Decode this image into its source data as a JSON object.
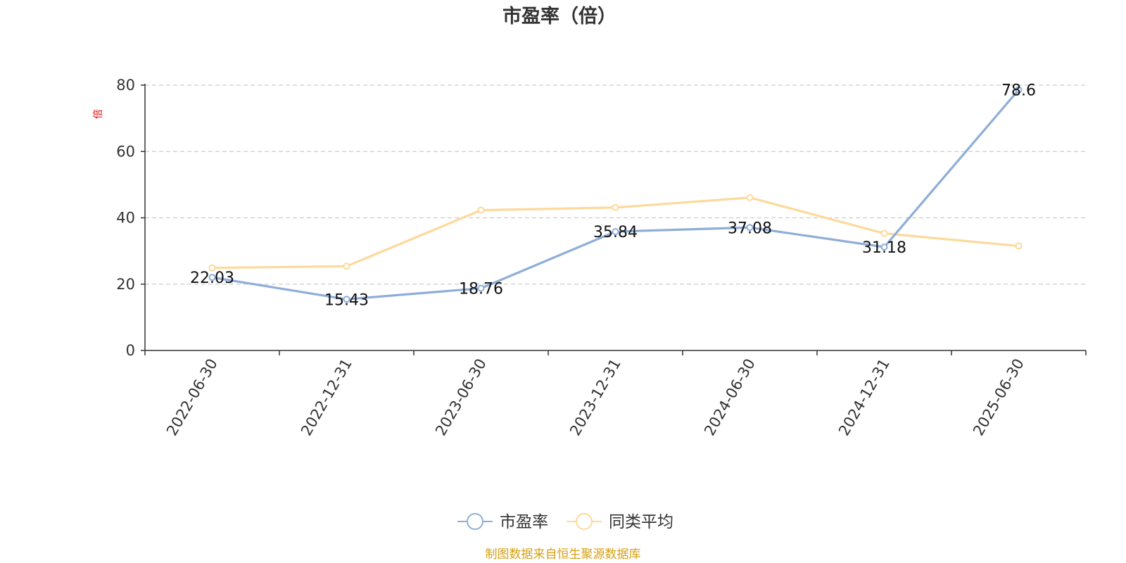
{
  "chart_data": {
    "type": "line",
    "title": "市盈率（倍）",
    "ylabel": "倍",
    "ylim": [
      0,
      80
    ],
    "yticks": [
      "0",
      "20",
      "40",
      "60",
      "80"
    ],
    "grid": true,
    "legend_position": "bottom",
    "categories": [
      "2022-06-30",
      "2022-12-31",
      "2023-06-30",
      "2023-12-31",
      "2024-06-30",
      "2024-12-31",
      "2025-06-30"
    ],
    "series": [
      {
        "name": "市盈率",
        "color": "#8eaed8",
        "values": [
          22.03,
          15.43,
          18.76,
          35.84,
          37.08,
          31.18,
          78.6
        ],
        "labels": [
          "22.03",
          "15.43",
          "18.76",
          "35.84",
          "37.08",
          "31.18",
          "78.6"
        ]
      },
      {
        "name": "同类平均",
        "color": "#fdd99b",
        "values": [
          24.9,
          25.4,
          42.3,
          43.1,
          46.1,
          35.3,
          31.5
        ]
      }
    ],
    "source": "制图数据来自恒生聚源数据库"
  }
}
